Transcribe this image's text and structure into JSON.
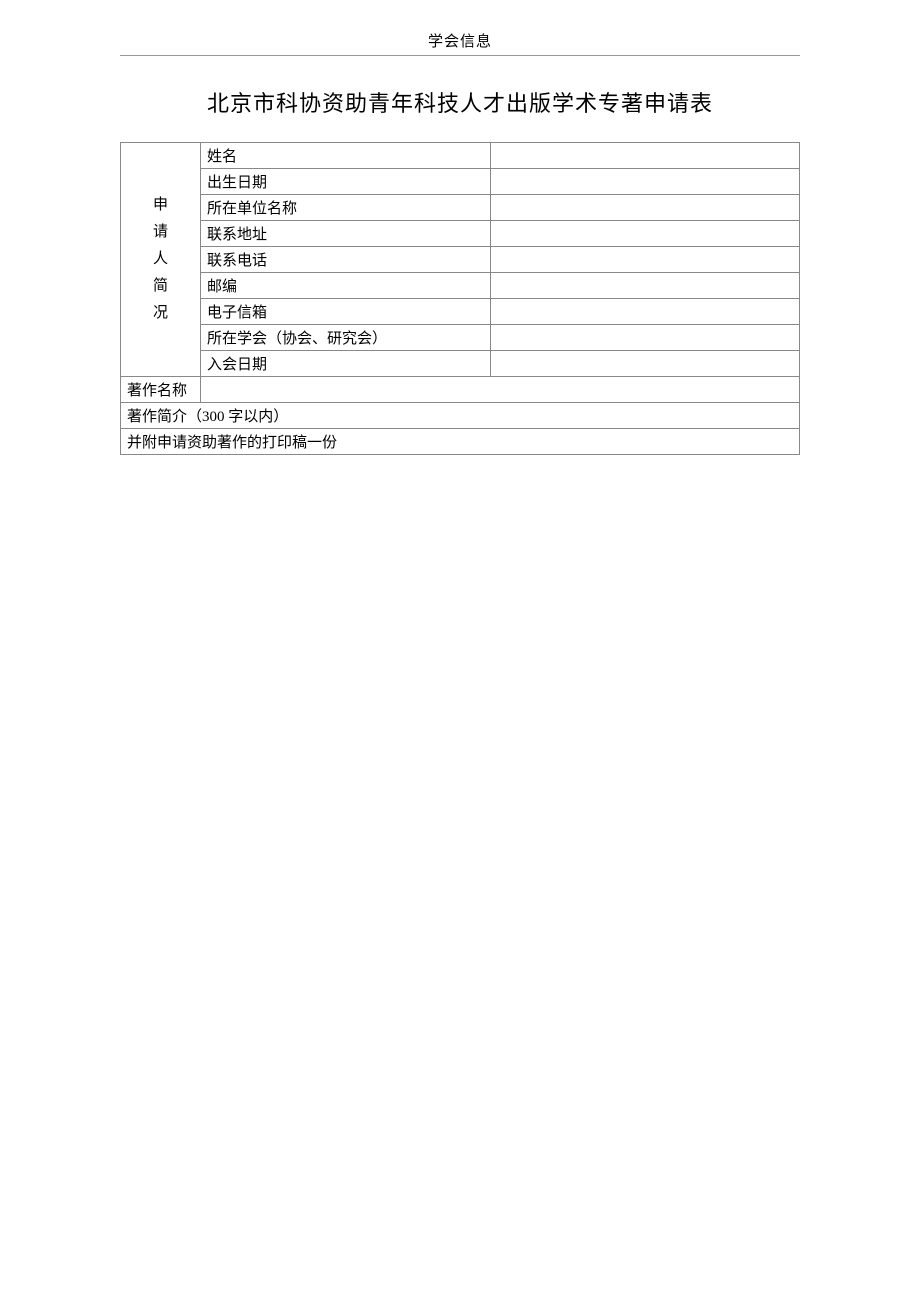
{
  "header": {
    "label": "学会信息"
  },
  "title": "北京市科协资助青年科技人才出版学术专著申请表",
  "applicant_section": {
    "header_chars": [
      "申",
      "请",
      "人",
      "简",
      "况"
    ],
    "rows": [
      {
        "label": "姓名",
        "value": ""
      },
      {
        "label": "出生日期",
        "value": ""
      },
      {
        "label": "所在单位名称",
        "value": ""
      },
      {
        "label": "联系地址",
        "value": ""
      },
      {
        "label": "联系电话",
        "value": ""
      },
      {
        "label": "邮编",
        "value": "",
        "small": true
      },
      {
        "label": "电子信箱",
        "value": ""
      },
      {
        "label": "所在学会（协会、研究会）",
        "value": ""
      },
      {
        "label": "入会日期",
        "value": ""
      }
    ]
  },
  "work_title": {
    "label": "著作名称",
    "value": ""
  },
  "work_summary": {
    "label": "著作简介（300 字以内）",
    "value": ""
  },
  "attachment": {
    "label": "并附申请资助著作的打印稿一份"
  },
  "colors": {
    "border": "#888888",
    "text": "#000000",
    "background": "#ffffff",
    "header_line": "#999999"
  }
}
